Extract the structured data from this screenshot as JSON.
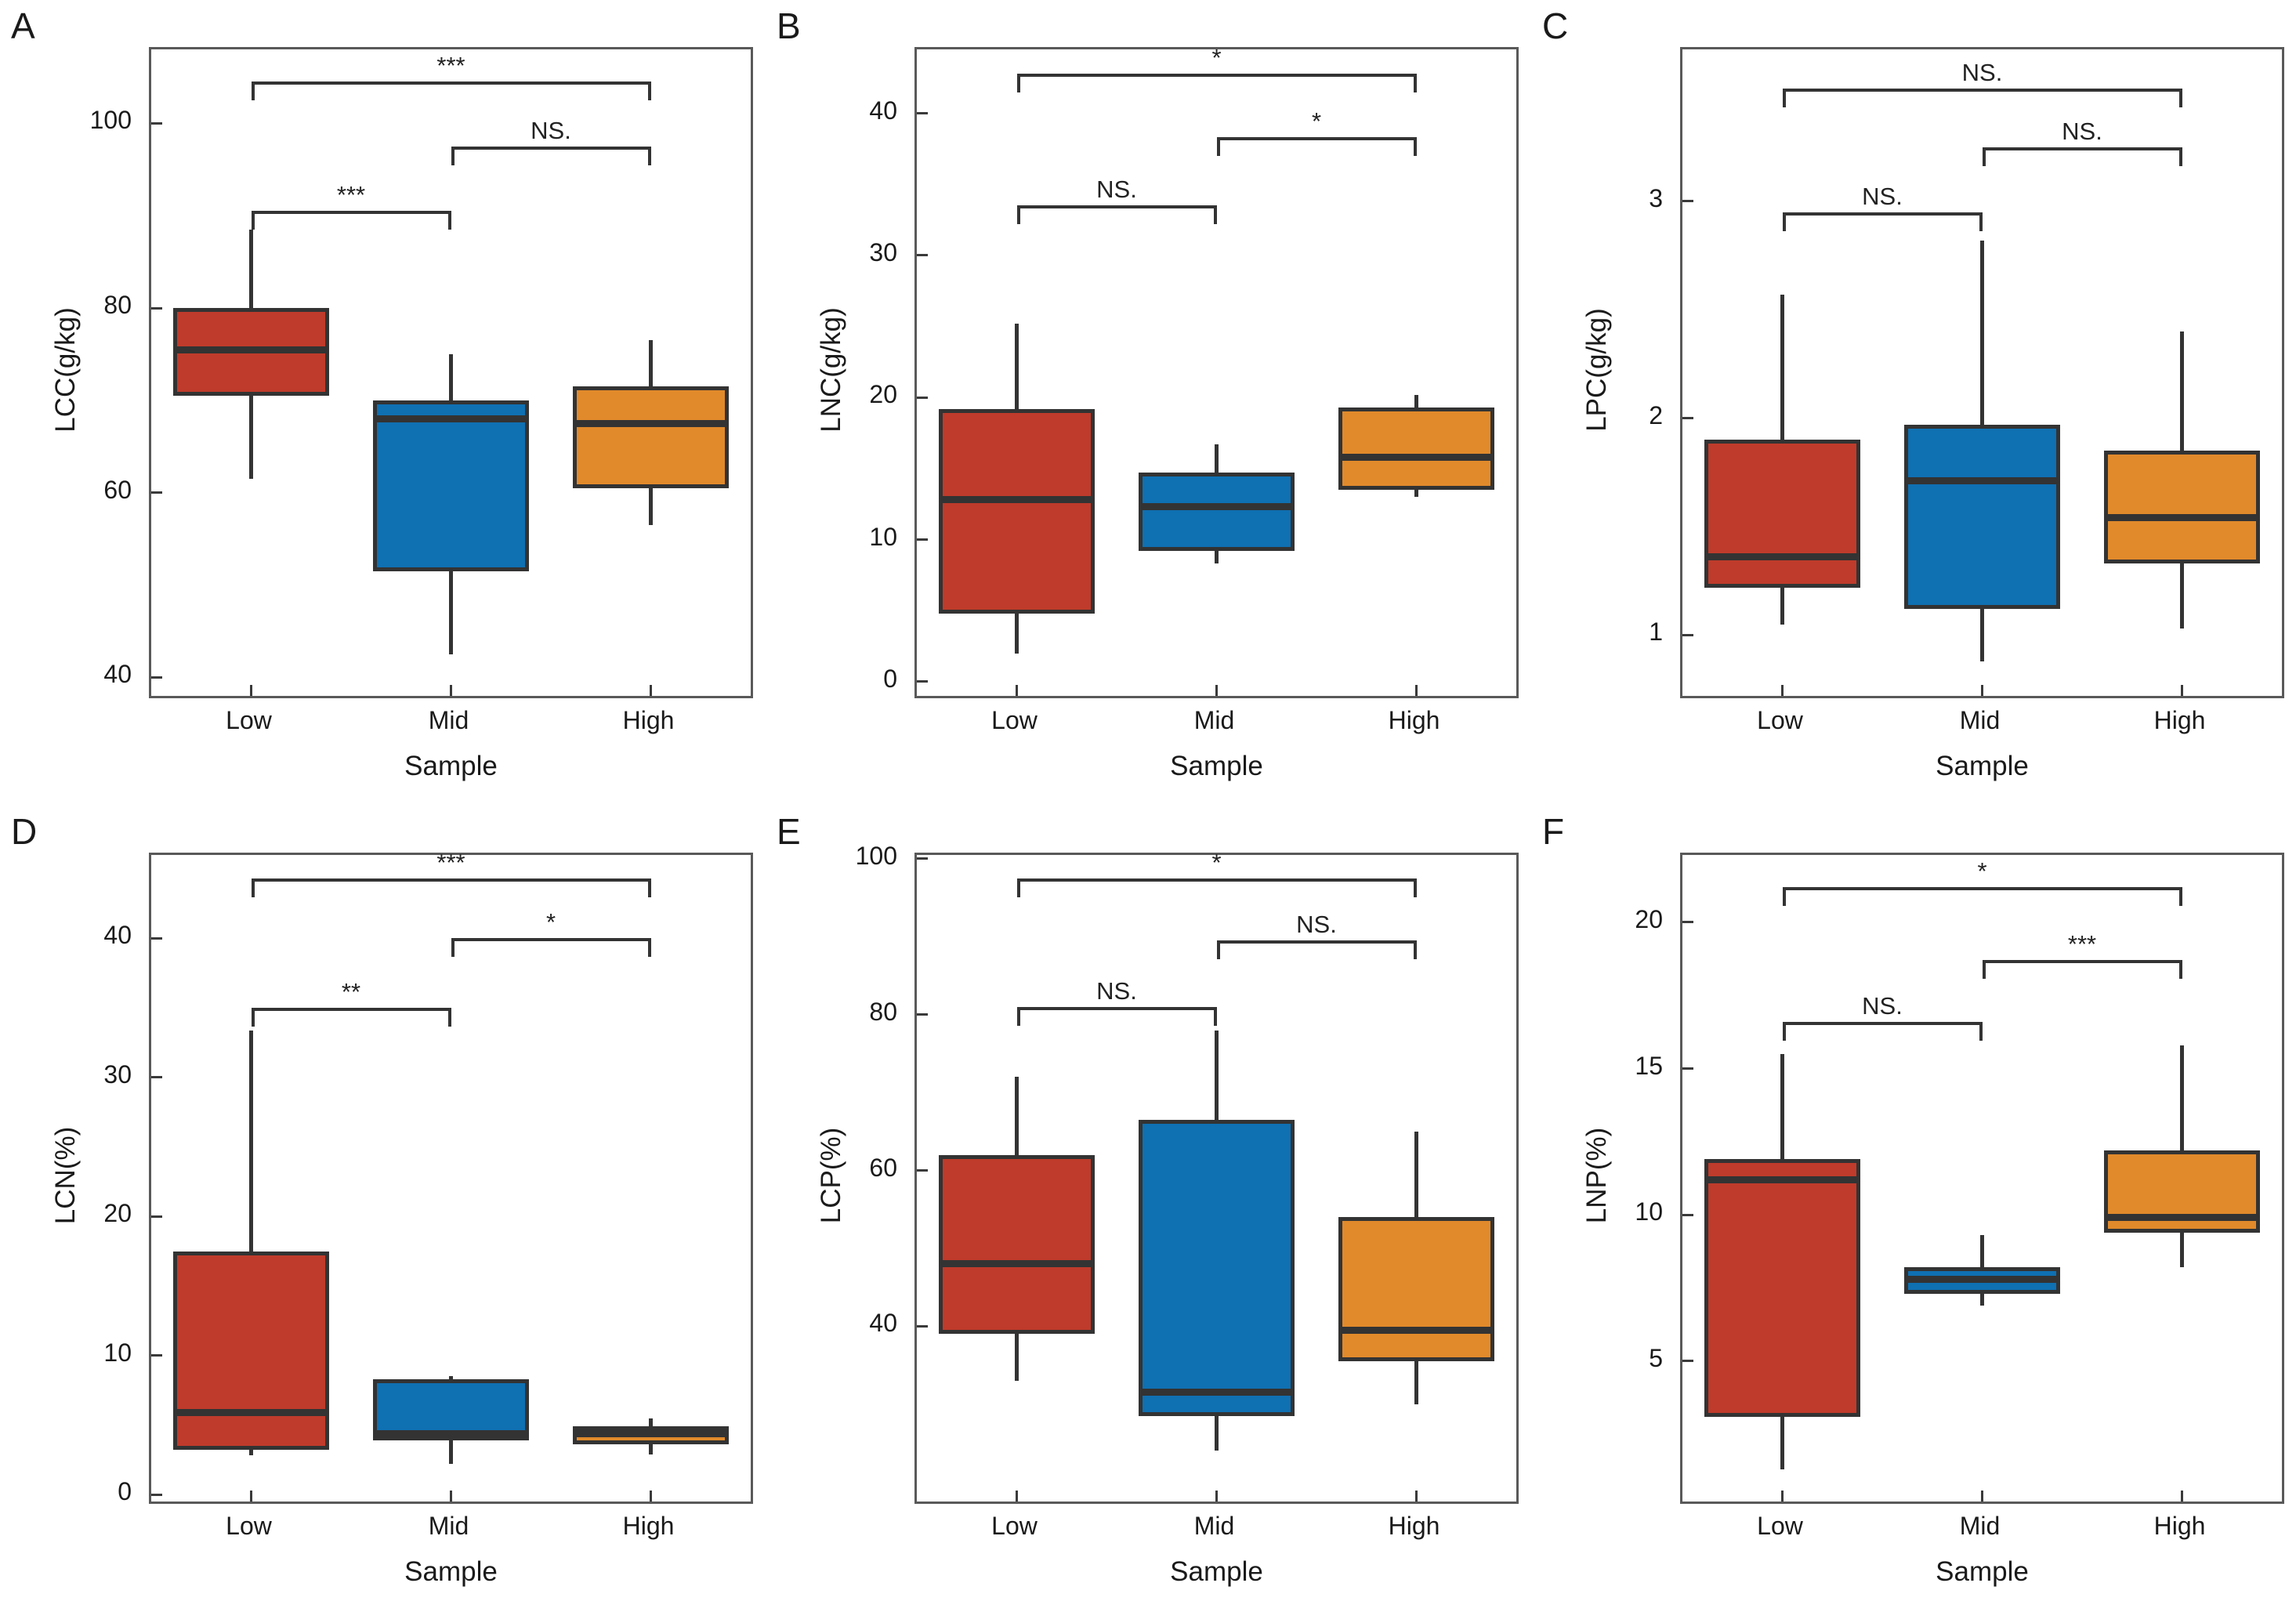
{
  "colors": {
    "red": "#BF3B2B",
    "blue": "#0F70B2",
    "orange": "#E18A2B",
    "line": "#333333",
    "spine": "#595959"
  },
  "chart_data": [
    {
      "panel": "A",
      "type": "box",
      "ylabel": "LCC(g/kg)",
      "xlabel": "Sample",
      "categories": [
        "Low",
        "Mid",
        "High"
      ],
      "yticks": [
        40,
        60,
        80,
        100
      ],
      "ylim": [
        38,
        108
      ],
      "boxes": [
        {
          "category": "Low",
          "color": "red",
          "min": 61.5,
          "q1": 70.5,
          "median": 75.5,
          "q3": 80.0,
          "max": 88.5
        },
        {
          "category": "Mid",
          "color": "blue",
          "min": 42.5,
          "q1": 51.5,
          "median": 68.0,
          "q3": 70.0,
          "max": 75.0
        },
        {
          "category": "High",
          "color": "orange",
          "min": 56.5,
          "q1": 60.5,
          "median": 67.5,
          "q3": 71.5,
          "max": 76.5
        }
      ],
      "significance": [
        {
          "from": "Low",
          "to": "Mid",
          "label": "***",
          "y": 90.5
        },
        {
          "from": "Mid",
          "to": "High",
          "label": "NS.",
          "y": 97.5
        },
        {
          "from": "Low",
          "to": "High",
          "label": "***",
          "y": 104.5
        }
      ]
    },
    {
      "panel": "B",
      "type": "box",
      "ylabel": "LNC(g/kg)",
      "xlabel": "Sample",
      "categories": [
        "Low",
        "Mid",
        "High"
      ],
      "yticks": [
        0,
        10,
        20,
        30,
        40
      ],
      "ylim": [
        -1,
        44.5
      ],
      "boxes": [
        {
          "category": "Low",
          "color": "red",
          "min": 2.0,
          "q1": 4.8,
          "median": 12.8,
          "q3": 19.2,
          "max": 25.2
        },
        {
          "category": "Mid",
          "color": "blue",
          "min": 8.3,
          "q1": 9.2,
          "median": 12.3,
          "q3": 14.7,
          "max": 16.7
        },
        {
          "category": "High",
          "color": "orange",
          "min": 13.0,
          "q1": 13.5,
          "median": 15.8,
          "q3": 19.3,
          "max": 20.2
        }
      ],
      "significance": [
        {
          "from": "Low",
          "to": "Mid",
          "label": "NS.",
          "y": 33.5
        },
        {
          "from": "Mid",
          "to": "High",
          "label": "*",
          "y": 38.3
        },
        {
          "from": "Low",
          "to": "High",
          "label": "*",
          "y": 42.8
        }
      ]
    },
    {
      "panel": "C",
      "type": "box",
      "ylabel": "LPC(g/kg)",
      "xlabel": "Sample",
      "categories": [
        "Low",
        "Mid",
        "High"
      ],
      "yticks": [
        1,
        2,
        3
      ],
      "ylim": [
        0.72,
        3.7
      ],
      "boxes": [
        {
          "category": "Low",
          "color": "red",
          "min": 1.05,
          "q1": 1.22,
          "median": 1.36,
          "q3": 1.9,
          "max": 2.57
        },
        {
          "category": "Mid",
          "color": "blue",
          "min": 0.88,
          "q1": 1.12,
          "median": 1.71,
          "q3": 1.97,
          "max": 2.82
        },
        {
          "category": "High",
          "color": "orange",
          "min": 1.03,
          "q1": 1.33,
          "median": 1.54,
          "q3": 1.85,
          "max": 2.4
        }
      ],
      "significance": [
        {
          "from": "Low",
          "to": "Mid",
          "label": "NS.",
          "y": 2.95
        },
        {
          "from": "Mid",
          "to": "High",
          "label": "NS.",
          "y": 3.25
        },
        {
          "from": "Low",
          "to": "High",
          "label": "NS.",
          "y": 3.52
        }
      ]
    },
    {
      "panel": "D",
      "type": "box",
      "ylabel": "LCN(%)",
      "xlabel": "Sample",
      "categories": [
        "Low",
        "Mid",
        "High"
      ],
      "yticks": [
        0,
        10,
        20,
        30,
        40
      ],
      "ylim": [
        -0.5,
        46
      ],
      "boxes": [
        {
          "category": "Low",
          "color": "red",
          "min": 2.8,
          "q1": 3.2,
          "median": 5.9,
          "q3": 17.5,
          "max": 33.4
        },
        {
          "category": "Mid",
          "color": "blue",
          "min": 2.2,
          "q1": 3.9,
          "median": 4.4,
          "q3": 8.3,
          "max": 8.5
        },
        {
          "category": "High",
          "color": "orange",
          "min": 2.9,
          "q1": 3.6,
          "median": 4.4,
          "q3": 4.9,
          "max": 5.5
        }
      ],
      "significance": [
        {
          "from": "Low",
          "to": "Mid",
          "label": "**",
          "y": 35.0
        },
        {
          "from": "Mid",
          "to": "High",
          "label": "*",
          "y": 40.0
        },
        {
          "from": "Low",
          "to": "High",
          "label": "***",
          "y": 44.3
        }
      ]
    },
    {
      "panel": "E",
      "type": "box",
      "ylabel": "LCP(%)",
      "xlabel": "Sample",
      "categories": [
        "Low",
        "Mid",
        "High"
      ],
      "yticks": [
        40,
        60,
        80,
        100
      ],
      "ylim": [
        17.5,
        100.5
      ],
      "boxes": [
        {
          "category": "Low",
          "color": "red",
          "min": 33.0,
          "q1": 39.0,
          "median": 48.0,
          "q3": 62.0,
          "max": 72.0
        },
        {
          "category": "Mid",
          "color": "blue",
          "min": 24.0,
          "q1": 28.5,
          "median": 31.5,
          "q3": 66.5,
          "max": 78.0
        },
        {
          "category": "High",
          "color": "orange",
          "min": 30.0,
          "q1": 35.5,
          "median": 39.5,
          "q3": 54.0,
          "max": 65.0
        }
      ],
      "significance": [
        {
          "from": "Low",
          "to": "Mid",
          "label": "NS.",
          "y": 81.0
        },
        {
          "from": "Mid",
          "to": "High",
          "label": "NS.",
          "y": 89.5
        },
        {
          "from": "Low",
          "to": "High",
          "label": "*",
          "y": 97.5
        }
      ]
    },
    {
      "panel": "F",
      "type": "box",
      "ylabel": "LNP(%)",
      "xlabel": "Sample",
      "categories": [
        "Low",
        "Mid",
        "High"
      ],
      "yticks": [
        5,
        10,
        15,
        20
      ],
      "ylim": [
        0.2,
        22.3
      ],
      "boxes": [
        {
          "category": "Low",
          "color": "red",
          "min": 1.3,
          "q1": 3.1,
          "median": 11.2,
          "q3": 11.9,
          "max": 15.5
        },
        {
          "category": "Mid",
          "color": "blue",
          "min": 6.9,
          "q1": 7.3,
          "median": 7.8,
          "q3": 8.2,
          "max": 9.3
        },
        {
          "category": "High",
          "color": "orange",
          "min": 8.2,
          "q1": 9.4,
          "median": 9.9,
          "q3": 12.2,
          "max": 15.8
        }
      ],
      "significance": [
        {
          "from": "Low",
          "to": "Mid",
          "label": "NS.",
          "y": 16.6
        },
        {
          "from": "Mid",
          "to": "High",
          "label": "***",
          "y": 18.7
        },
        {
          "from": "Low",
          "to": "High",
          "label": "*",
          "y": 21.2
        }
      ]
    }
  ]
}
